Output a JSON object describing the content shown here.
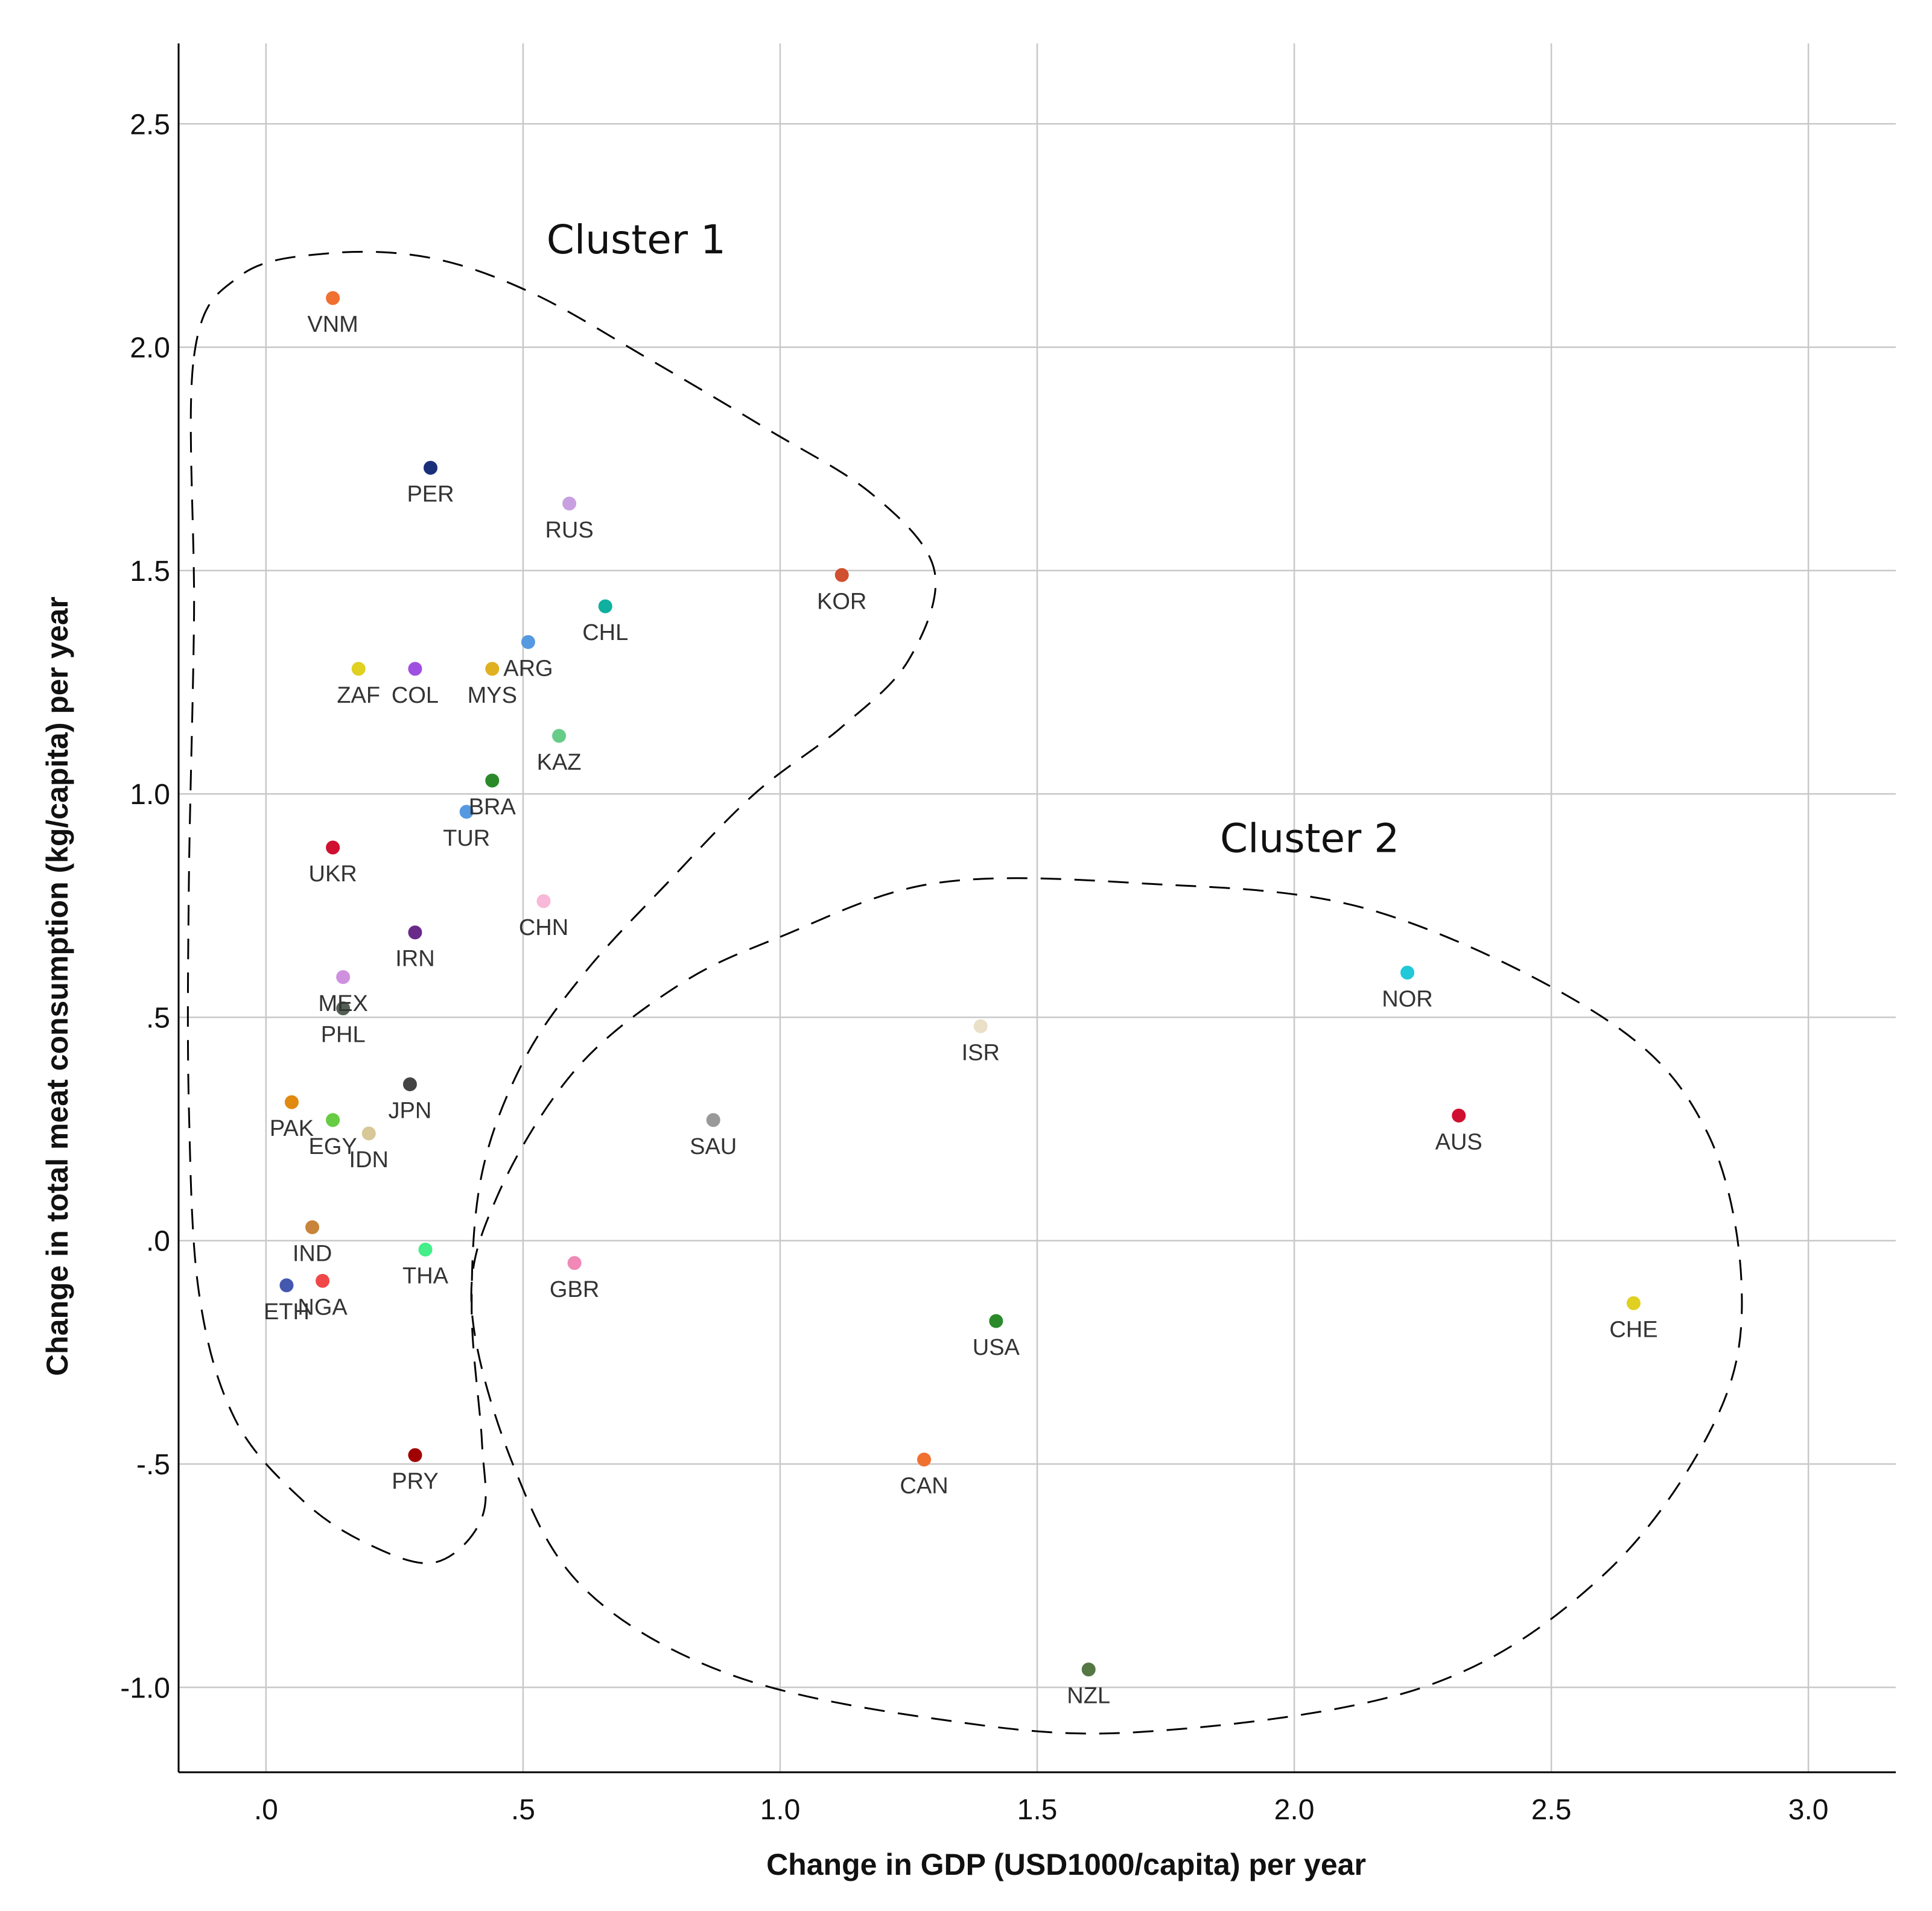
{
  "chart_data": {
    "type": "scatter",
    "title": "",
    "xlabel": "Change in GDP (USD1000/capita) per year",
    "ylabel": "Change in total meat consumption (kg/capita) per year",
    "xlim": [
      -0.17,
      3.17
    ],
    "ylim": [
      -1.19,
      2.68
    ],
    "xticks": [
      0,
      0.5,
      1.0,
      1.5,
      2.0,
      2.5,
      3.0
    ],
    "xtick_labels": [
      ".0",
      ".5",
      "1.0",
      "1.5",
      "2.0",
      "2.5",
      "3.0"
    ],
    "yticks": [
      -1.0,
      -0.5,
      0,
      0.5,
      1.0,
      1.5,
      2.0,
      2.5
    ],
    "ytick_labels": [
      "-1.0",
      "-.5",
      ".0",
      ".5",
      "1.0",
      "1.5",
      "2.0",
      "2.5"
    ],
    "grid": true,
    "points": [
      {
        "label": "VNM",
        "x": 0.13,
        "y": 2.11,
        "color": "#f07030"
      },
      {
        "label": "PER",
        "x": 0.32,
        "y": 1.73,
        "color": "#1a2f7a"
      },
      {
        "label": "RUS",
        "x": 0.59,
        "y": 1.65,
        "color": "#c8a0e0"
      },
      {
        "label": "KOR",
        "x": 1.12,
        "y": 1.49,
        "color": "#d05030"
      },
      {
        "label": "CHL",
        "x": 0.66,
        "y": 1.42,
        "color": "#10b0a0"
      },
      {
        "label": "ARG",
        "x": 0.51,
        "y": 1.34,
        "color": "#5599e0"
      },
      {
        "label": "ZAF",
        "x": 0.18,
        "y": 1.28,
        "color": "#e0d020"
      },
      {
        "label": "COL",
        "x": 0.29,
        "y": 1.28,
        "color": "#a050e0"
      },
      {
        "label": "MYS",
        "x": 0.44,
        "y": 1.28,
        "color": "#e0b020"
      },
      {
        "label": "KAZ",
        "x": 0.57,
        "y": 1.13,
        "color": "#66cc88"
      },
      {
        "label": "BRA",
        "x": 0.44,
        "y": 1.03,
        "color": "#2a8a2a"
      },
      {
        "label": "TUR",
        "x": 0.39,
        "y": 0.96,
        "color": "#5599e0"
      },
      {
        "label": "UKR",
        "x": 0.13,
        "y": 0.88,
        "color": "#d01030"
      },
      {
        "label": "CHN",
        "x": 0.54,
        "y": 0.76,
        "color": "#f8b8d8"
      },
      {
        "label": "IRN",
        "x": 0.29,
        "y": 0.69,
        "color": "#6a2a8a"
      },
      {
        "label": "MEX",
        "x": 0.15,
        "y": 0.59,
        "color": "#d090e0"
      },
      {
        "label": "PHL",
        "x": 0.15,
        "y": 0.52,
        "color": "#555f55"
      },
      {
        "label": "JPN",
        "x": 0.28,
        "y": 0.35,
        "color": "#444444"
      },
      {
        "label": "PAK",
        "x": 0.05,
        "y": 0.31,
        "color": "#e08a10"
      },
      {
        "label": "EGY",
        "x": 0.13,
        "y": 0.27,
        "color": "#66cc44"
      },
      {
        "label": "IDN",
        "x": 0.2,
        "y": 0.24,
        "color": "#d8c898"
      },
      {
        "label": "IND",
        "x": 0.09,
        "y": 0.03,
        "color": "#c8843a"
      },
      {
        "label": "THA",
        "x": 0.31,
        "y": -0.02,
        "color": "#44ee88"
      },
      {
        "label": "NGA",
        "x": 0.11,
        "y": -0.09,
        "color": "#f04848"
      },
      {
        "label": "ETH",
        "x": 0.04,
        "y": -0.1,
        "color": "#4458b0"
      },
      {
        "label": "PRY",
        "x": 0.29,
        "y": -0.48,
        "color": "#a00000"
      },
      {
        "label": "GBR",
        "x": 0.6,
        "y": -0.05,
        "color": "#f088b8"
      },
      {
        "label": "SAU",
        "x": 0.87,
        "y": 0.27,
        "color": "#999999"
      },
      {
        "label": "ISR",
        "x": 1.39,
        "y": 0.48,
        "color": "#eae0c8"
      },
      {
        "label": "NOR",
        "x": 2.22,
        "y": 0.6,
        "color": "#20c8d8"
      },
      {
        "label": "AUS",
        "x": 2.32,
        "y": 0.28,
        "color": "#d01030"
      },
      {
        "label": "USA",
        "x": 1.42,
        "y": -0.18,
        "color": "#2a8a2a"
      },
      {
        "label": "CHE",
        "x": 2.66,
        "y": -0.14,
        "color": "#e0d020"
      },
      {
        "label": "CAN",
        "x": 1.28,
        "y": -0.49,
        "color": "#f07030"
      },
      {
        "label": "NZL",
        "x": 1.6,
        "y": -0.96,
        "color": "#557744"
      }
    ],
    "annotations": [
      {
        "text": "Cluster 1",
        "x": 0.72,
        "y": 2.21
      },
      {
        "text": "Cluster 2",
        "x": 2.03,
        "y": 0.87
      }
    ],
    "clusters": [
      {
        "name": "Cluster 1",
        "path": [
          [
            -0.14,
            1.98
          ],
          [
            -0.05,
            2.16
          ],
          [
            0.12,
            2.21
          ],
          [
            0.32,
            2.2
          ],
          [
            0.52,
            2.12
          ],
          [
            0.75,
            1.97
          ],
          [
            0.97,
            1.82
          ],
          [
            1.18,
            1.67
          ],
          [
            1.3,
            1.5
          ],
          [
            1.25,
            1.3
          ],
          [
            1.12,
            1.15
          ],
          [
            0.95,
            1.0
          ],
          [
            0.78,
            0.8
          ],
          [
            0.62,
            0.6
          ],
          [
            0.5,
            0.4
          ],
          [
            0.42,
            0.15
          ],
          [
            0.4,
            -0.15
          ],
          [
            0.42,
            -0.45
          ],
          [
            0.42,
            -0.62
          ],
          [
            0.33,
            -0.72
          ],
          [
            0.2,
            -0.68
          ],
          [
            0.07,
            -0.58
          ],
          [
            -0.06,
            -0.4
          ],
          [
            -0.13,
            -0.12
          ],
          [
            -0.15,
            0.3
          ],
          [
            -0.15,
            0.8
          ],
          [
            -0.14,
            1.4
          ],
          [
            -0.14,
            1.98
          ]
        ]
      },
      {
        "name": "Cluster 2",
        "path": [
          [
            1.0,
            0.68
          ],
          [
            1.3,
            0.8
          ],
          [
            1.7,
            0.8
          ],
          [
            2.15,
            0.74
          ],
          [
            2.6,
            0.5
          ],
          [
            2.8,
            0.25
          ],
          [
            2.87,
            -0.1
          ],
          [
            2.82,
            -0.4
          ],
          [
            2.6,
            -0.75
          ],
          [
            2.25,
            -1.0
          ],
          [
            1.7,
            -1.1
          ],
          [
            1.3,
            -1.07
          ],
          [
            0.9,
            -0.97
          ],
          [
            0.62,
            -0.78
          ],
          [
            0.48,
            -0.5
          ],
          [
            0.4,
            -0.15
          ],
          [
            0.45,
            0.1
          ],
          [
            0.6,
            0.38
          ],
          [
            0.8,
            0.57
          ],
          [
            1.0,
            0.68
          ]
        ]
      }
    ]
  }
}
